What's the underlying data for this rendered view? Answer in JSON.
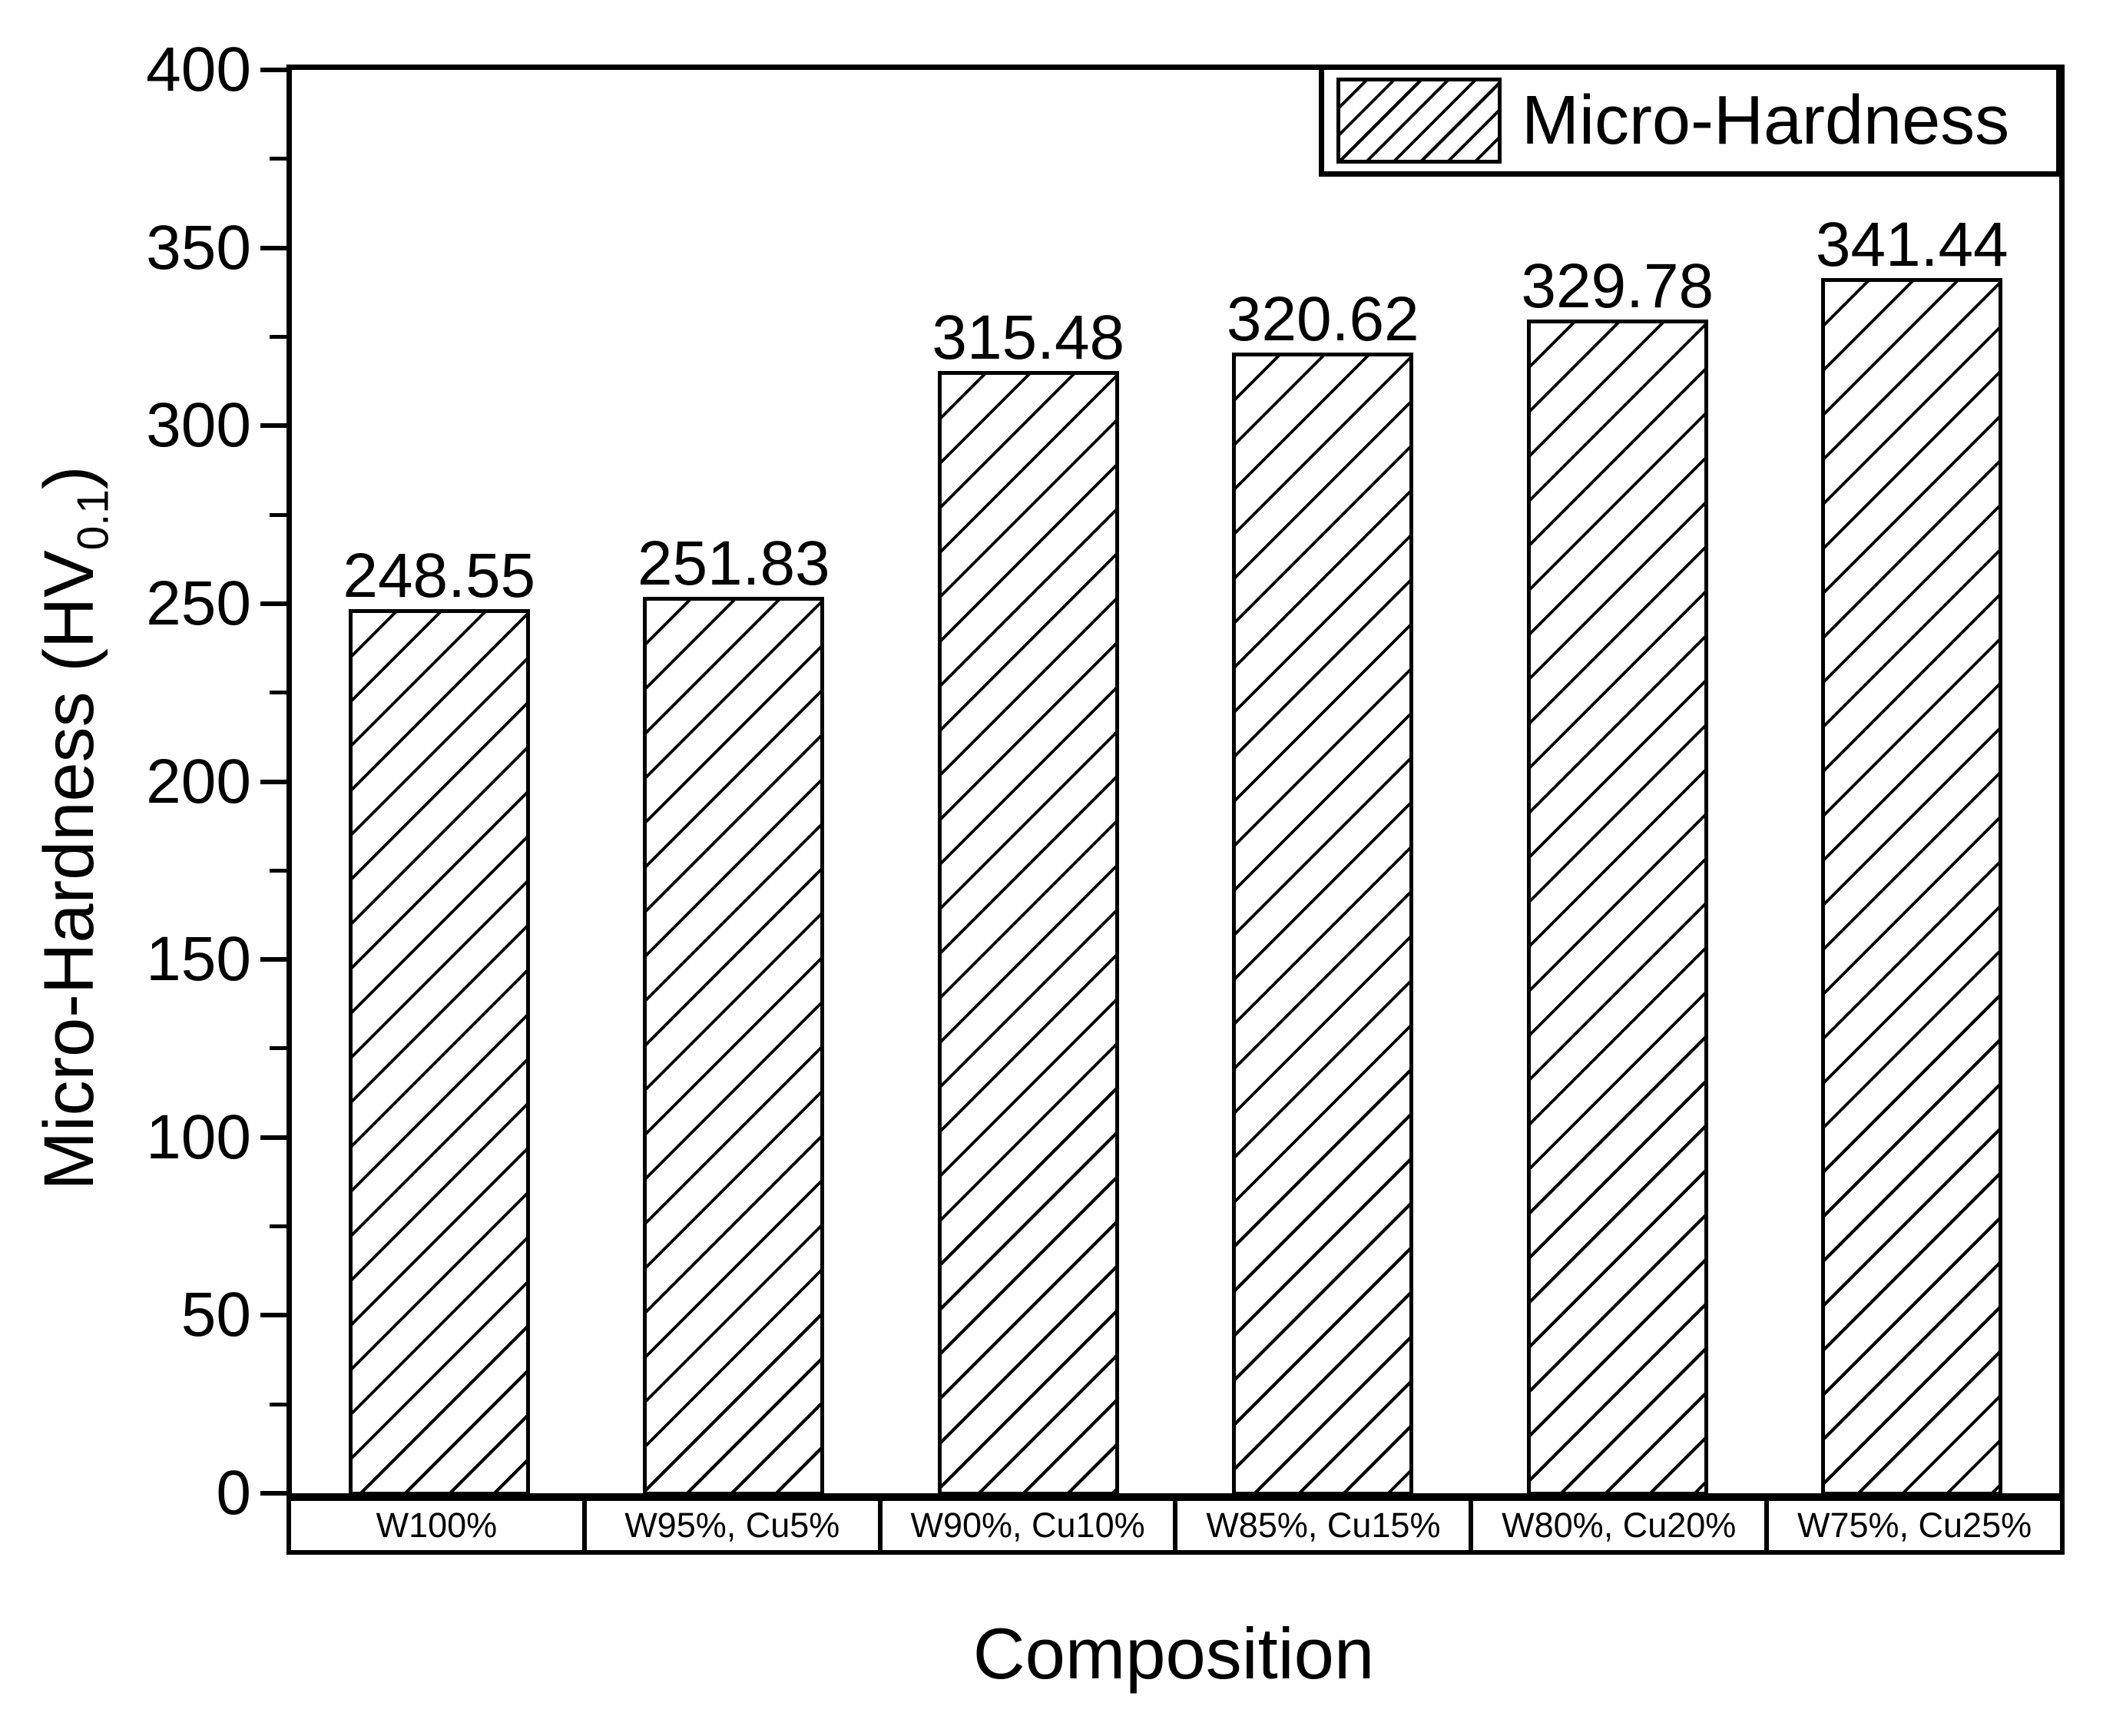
{
  "chart_data": {
    "type": "bar",
    "title": "",
    "xlabel": "Composition",
    "ylabel": "Micro-Hardness (HV0.1)",
    "ylabel_parts": {
      "prefix": "Micro-Hardness (HV",
      "sub": "0.1",
      "suffix": ")"
    },
    "categories": [
      "W100%",
      "W95%, Cu5%",
      "W90%, Cu10%",
      "W85%, Cu15%",
      "W80%, Cu20%",
      "W75%, Cu25%"
    ],
    "series": [
      {
        "name": "Micro-Hardness",
        "values": [
          248.55,
          251.83,
          315.48,
          320.62,
          329.78,
          341.44
        ]
      }
    ],
    "value_labels": [
      "248.55",
      "251.83",
      "315.48",
      "320.62",
      "329.78",
      "341.44"
    ],
    "ylim": [
      0,
      400
    ],
    "ytick_step": 50,
    "ytick_minor_step": 25,
    "ytick_labels": [
      "0",
      "50",
      "100",
      "150",
      "200",
      "250",
      "300",
      "350",
      "400"
    ],
    "grid": false,
    "legend": {
      "label": "Micro-Hardness",
      "position": "top-right",
      "swatch": "diagonal-hatch"
    },
    "bar_style": {
      "fill": "#ffffff",
      "hatch": "diagonal-forward-slash",
      "border": "#000000"
    }
  },
  "colors": {
    "ink": "#000000",
    "background": "#ffffff"
  }
}
